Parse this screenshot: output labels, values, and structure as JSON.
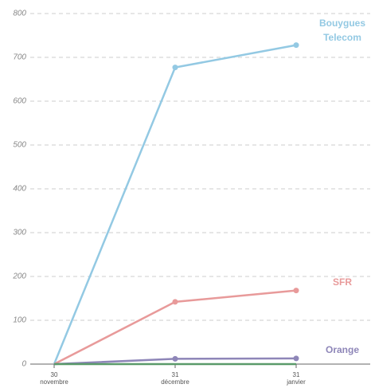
{
  "chart_data": {
    "type": "line",
    "categories": [
      [
        "30",
        "novembre"
      ],
      [
        "31",
        "décembre"
      ],
      [
        "31",
        "janvier"
      ]
    ],
    "series": [
      {
        "name": "Bouygues Telecom",
        "color": "#93c9e3",
        "values": [
          0,
          677,
          728
        ]
      },
      {
        "name": "SFR",
        "color": "#e89a9a",
        "values": [
          0,
          142,
          168
        ]
      },
      {
        "name": "Orange",
        "color": "#8e86b8",
        "values": [
          0,
          12,
          13
        ]
      },
      {
        "color": "#5a9a6a",
        "values": [
          0,
          0,
          0
        ]
      }
    ],
    "ylim": [
      0,
      800
    ],
    "yticks": [
      0,
      100,
      200,
      300,
      400,
      500,
      600,
      700,
      800
    ],
    "grid": true
  }
}
